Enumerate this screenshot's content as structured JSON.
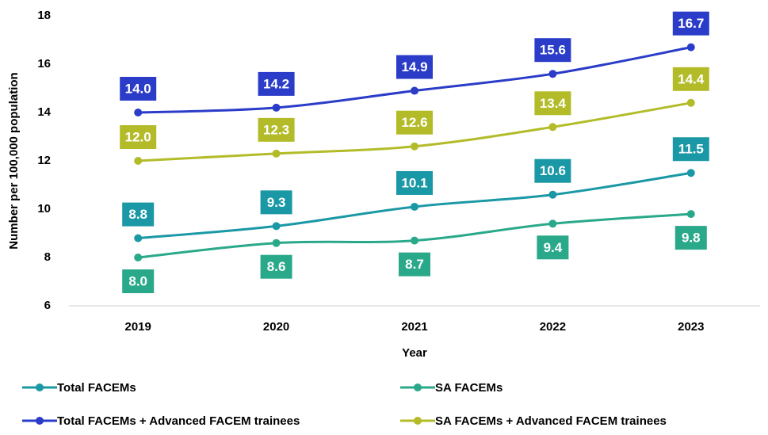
{
  "chart_data": {
    "type": "line",
    "x_label": "Year",
    "y_label": "Number per 100,000 population",
    "categories": [
      "2019",
      "2020",
      "2021",
      "2022",
      "2023"
    ],
    "ylim": [
      6,
      18
    ],
    "yticks": [
      6,
      8,
      10,
      12,
      14,
      16,
      18
    ],
    "grid": false,
    "legend": "bottom",
    "series": [
      {
        "name": "Total FACEMs",
        "color": "#1a98a6",
        "values": [
          8.8,
          9.3,
          10.1,
          10.6,
          11.5
        ],
        "value_labels": [
          "8.8",
          "9.3",
          "10.1",
          "10.6",
          "11.5"
        ]
      },
      {
        "name": "SA FACEMs",
        "color": "#2aa98a",
        "values": [
          8.0,
          8.6,
          8.7,
          9.4,
          9.8
        ],
        "value_labels": [
          "8.0",
          "8.6",
          "8.7",
          "9.4",
          "9.8"
        ]
      },
      {
        "name": "Total FACEMs + Advanced FACEM trainees",
        "color": "#2a3cc8",
        "values": [
          14.0,
          14.2,
          14.9,
          15.6,
          16.7
        ],
        "value_labels": [
          "14.0",
          "14.2",
          "14.9",
          "15.6",
          "16.7"
        ]
      },
      {
        "name": "SA FACEMs + Advanced FACEM trainees",
        "color": "#b3bc28",
        "values": [
          12.0,
          12.3,
          12.6,
          13.4,
          14.4
        ],
        "value_labels": [
          "12.0",
          "12.3",
          "12.6",
          "13.4",
          "14.4"
        ]
      }
    ]
  }
}
